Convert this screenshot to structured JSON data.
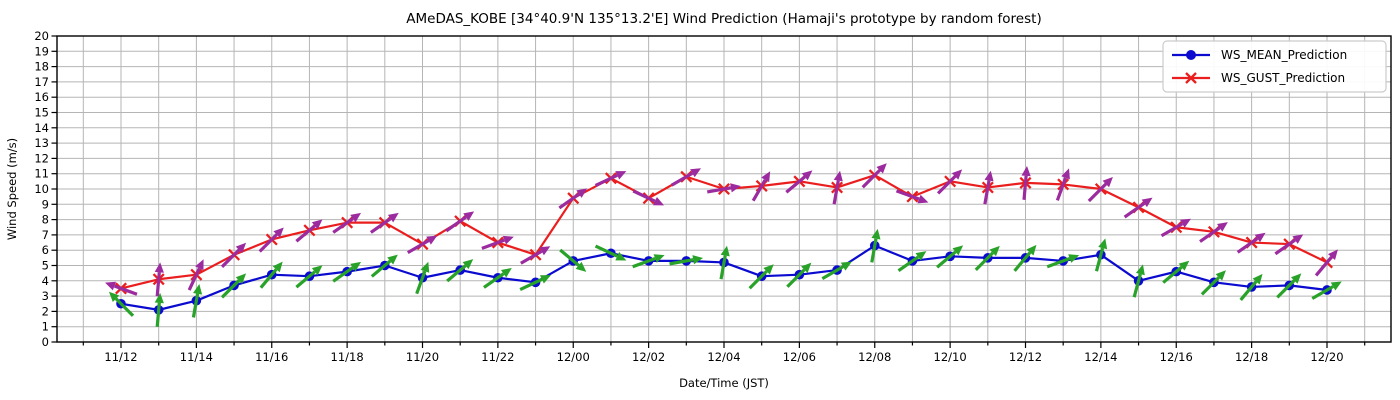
{
  "title": "AMeDAS_KOBE [34°40.9'N 135°13.2'E] Wind Prediction (Hamaji's prototype by random forest)",
  "chart_data": {
    "type": "line",
    "xlabel": "Date/Time (JST)",
    "ylabel": "Wind Speed (m/s)",
    "ylim": [
      0,
      20
    ],
    "ytick_step": 1,
    "grid": true,
    "legend_position": "upper right",
    "xtick_label_every": 2,
    "x": [
      "11/12",
      "11/13",
      "11/14",
      "11/15",
      "11/16",
      "11/17",
      "11/18",
      "11/19",
      "11/20",
      "11/21",
      "11/22",
      "11/23",
      "12/00",
      "12/01",
      "12/02",
      "12/03",
      "12/04",
      "12/05",
      "12/06",
      "12/07",
      "12/08",
      "12/09",
      "12/10",
      "12/11",
      "12/12",
      "12/13",
      "12/14",
      "12/15",
      "12/16",
      "12/17",
      "12/18",
      "12/19",
      "12/20"
    ],
    "series": [
      {
        "name": "WS_MEAN_Prediction",
        "marker": "circle",
        "color": "#0b0bd0",
        "arrow_color": "#28a228",
        "values": [
          2.5,
          2.1,
          2.7,
          3.7,
          4.4,
          4.3,
          4.6,
          5.0,
          4.2,
          4.7,
          4.2,
          3.9,
          5.3,
          5.8,
          5.3,
          5.3,
          5.2,
          4.3,
          4.4,
          4.7,
          6.3,
          5.3,
          5.6,
          5.5,
          5.5,
          5.3,
          5.7,
          4.0,
          4.6,
          3.9,
          3.6,
          3.7,
          3.4
        ],
        "dir_deg": [
          135,
          85,
          80,
          45,
          50,
          40,
          35,
          40,
          70,
          40,
          35,
          25,
          -40,
          -25,
          20,
          10,
          80,
          45,
          45,
          30,
          80,
          35,
          40,
          45,
          50,
          20,
          75,
          75,
          40,
          45,
          50,
          45,
          30
        ]
      },
      {
        "name": "WS_GUST_Prediction",
        "marker": "x",
        "color": "#ea1e1e",
        "arrow_color": "#9b2b9e",
        "values": [
          3.5,
          4.1,
          4.4,
          5.7,
          6.7,
          7.3,
          7.8,
          7.8,
          6.4,
          7.9,
          6.5,
          5.7,
          9.4,
          10.7,
          9.4,
          10.8,
          10.0,
          10.2,
          10.5,
          10.1,
          10.9,
          9.5,
          10.5,
          10.1,
          10.4,
          10.3,
          10.0,
          8.8,
          7.5,
          7.2,
          6.5,
          6.4,
          5.2
        ],
        "dir_deg": [
          160,
          85,
          65,
          45,
          45,
          40,
          35,
          35,
          30,
          35,
          20,
          30,
          35,
          25,
          -25,
          30,
          10,
          60,
          40,
          80,
          45,
          -20,
          45,
          80,
          85,
          70,
          45,
          35,
          30,
          35,
          35,
          35,
          50
        ]
      }
    ],
    "colors": {
      "grid": "#b5b5b5",
      "spine": "#000000",
      "background": "#ffffff",
      "legend_border": "#cccccc"
    }
  }
}
